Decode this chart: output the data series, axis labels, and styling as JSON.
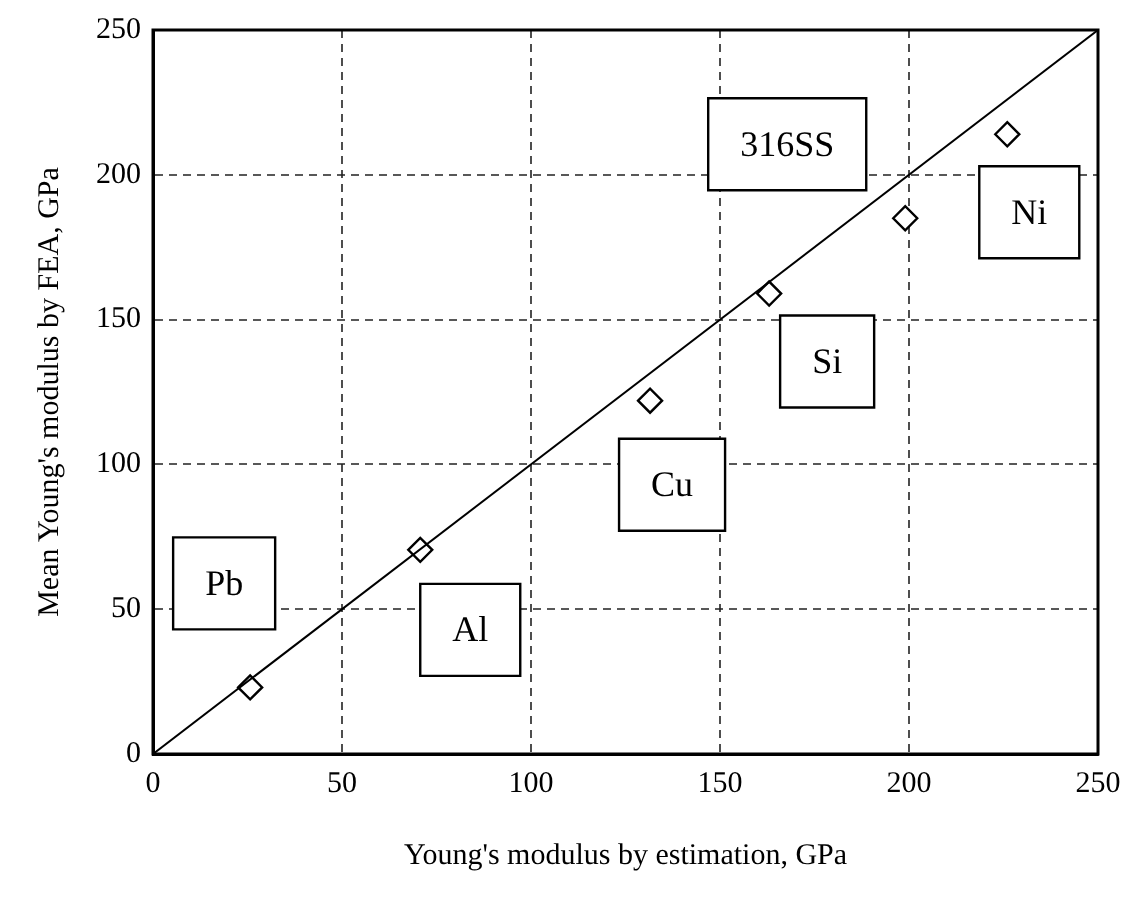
{
  "chart_data": {
    "type": "scatter",
    "xlabel": "Young's modulus by estimation, GPa",
    "ylabel": "Mean Young's modulus by FEA, GPa",
    "xlim": [
      0,
      250
    ],
    "xticks": [
      0,
      50,
      100,
      150,
      200,
      250
    ],
    "ylim": [
      0,
      250
    ],
    "yticks": [
      0,
      50,
      100,
      150,
      200,
      250
    ],
    "grid": true,
    "legend": false,
    "marker": "diamond",
    "series": [
      {
        "type": "scatter",
        "color": "#000000",
        "x": [
          25.7,
          70.7,
          131.5,
          163,
          199,
          226
        ],
        "values": [
          23,
          70.5,
          122,
          159,
          185,
          214
        ]
      },
      {
        "type": "line",
        "color": "#000000",
        "marker": "none",
        "line_style": "solid",
        "x": [
          0,
          250
        ],
        "values": [
          0,
          250
        ]
      }
    ],
    "annotations": [
      {
        "text": "Pb",
        "x": 25.7,
        "y": 23
      },
      {
        "text": "Al",
        "x": 70.7,
        "y": 70.5
      },
      {
        "text": "Cu",
        "x": 131.5,
        "y": 122
      },
      {
        "text": "Si",
        "x": 163,
        "y": 159
      },
      {
        "text": "316SS",
        "x": 199,
        "y": 185
      },
      {
        "text": "Ni",
        "x": 226,
        "y": 214
      }
    ]
  }
}
